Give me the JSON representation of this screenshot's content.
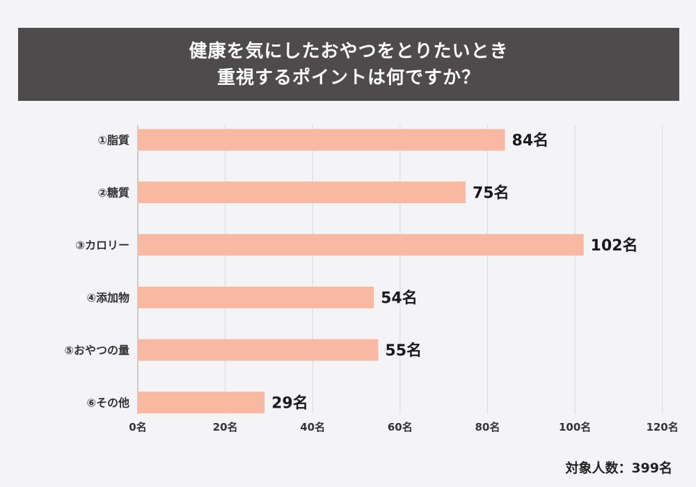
{
  "title": {
    "line1": "健康を気にしたおやつをとりたいとき",
    "line2": "重視するポイントは何ですか？"
  },
  "footer": "対象人数：399名",
  "colors": {
    "banner": "#4d4b4c",
    "bar": "#f8b8a2",
    "grid": "#d9d9d9",
    "background": "#f4f3f5"
  },
  "chart_data": {
    "type": "bar",
    "orientation": "horizontal",
    "title": "健康を気にしたおやつをとりたいとき重視するポイントは何ですか？",
    "categories": [
      "①脂質",
      "②糖質",
      "③カロリー",
      "④添加物",
      "⑤おやつの量",
      "⑥その他"
    ],
    "values": [
      84,
      75,
      102,
      54,
      55,
      29
    ],
    "value_labels": [
      "84名",
      "75名",
      "102名",
      "54名",
      "55名",
      "29名"
    ],
    "x_ticks": [
      0,
      20,
      40,
      60,
      80,
      100,
      120
    ],
    "x_tick_labels": [
      "0名",
      "20名",
      "40名",
      "60名",
      "80名",
      "100名",
      "120名"
    ],
    "xlim": [
      0,
      120
    ],
    "grid": true,
    "legend": "none"
  }
}
